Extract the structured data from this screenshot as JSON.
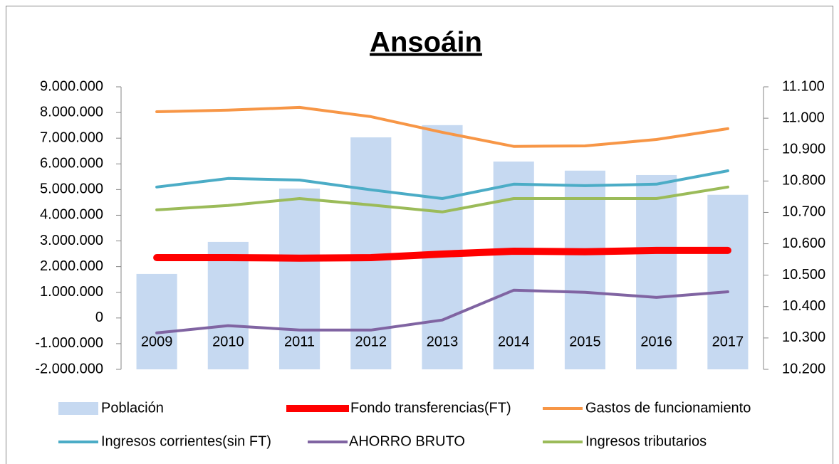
{
  "chart_data": {
    "type": "bar-line",
    "title": "Ansoáin",
    "categories": [
      "2009",
      "2010",
      "2011",
      "2012",
      "2013",
      "2014",
      "2015",
      "2016",
      "2017"
    ],
    "ylim": [
      -2000000,
      9000000
    ],
    "yticks": [
      {
        "value": -2000000,
        "label": "-2.000.000"
      },
      {
        "value": -1000000,
        "label": "-1.000.000"
      },
      0,
      {
        "value": 1000000,
        "label": "1.000.000"
      },
      {
        "value": 2000000,
        "label": "2.000.000"
      },
      {
        "value": 3000000,
        "label": "3.000.000"
      },
      {
        "value": 4000000,
        "label": "4.000.000"
      },
      {
        "value": 5000000,
        "label": "5.000.000"
      },
      {
        "value": 6000000,
        "label": "6.000.000"
      },
      {
        "value": 7000000,
        "label": "7.000.000"
      },
      {
        "value": 8000000,
        "label": "8.000.000"
      },
      {
        "value": 9000000,
        "label": "9.000.000"
      }
    ],
    "y2lim": [
      10200,
      11100
    ],
    "y2ticks": [
      {
        "value": 10200,
        "label": "10.200"
      },
      {
        "value": 10300,
        "label": "10.300"
      },
      {
        "value": 10400,
        "label": "10.400"
      },
      {
        "value": 10500,
        "label": "10.500"
      },
      {
        "value": 10600,
        "label": "10.600"
      },
      {
        "value": 10700,
        "label": "10.700"
      },
      {
        "value": 10800,
        "label": "10.800"
      },
      {
        "value": 10900,
        "label": "10.900"
      },
      {
        "value": 11000,
        "label": "11.000"
      },
      {
        "value": 11100,
        "label": "11.100"
      }
    ],
    "series": [
      {
        "name": "Población",
        "type": "bar",
        "axis": "y2",
        "color": "#c6d9f1",
        "values": [
          10504,
          10606,
          10776,
          10939,
          10978,
          10862,
          10833,
          10819,
          10756
        ]
      },
      {
        "name": "Fondo transferencias(FT)",
        "type": "line",
        "line_width": 10,
        "color": "#ff0000",
        "values": [
          2350000,
          2350000,
          2330000,
          2350000,
          2490000,
          2600000,
          2580000,
          2630000,
          2630000
        ]
      },
      {
        "name": "Gastos de funcionamiento",
        "type": "line",
        "line_width": 4,
        "color": "#f79646",
        "values": [
          8030000,
          8090000,
          8200000,
          7840000,
          7230000,
          6680000,
          6700000,
          6950000,
          7370000
        ]
      },
      {
        "name": "Ingresos corrientes(sin FT)",
        "type": "line",
        "line_width": 4,
        "color": "#4bacc6",
        "values": [
          5100000,
          5430000,
          5370000,
          4990000,
          4650000,
          5210000,
          5150000,
          5210000,
          5730000
        ]
      },
      {
        "name": "AHORRO BRUTO",
        "type": "line",
        "line_width": 4,
        "color": "#8064a2",
        "values": [
          -580000,
          -300000,
          -470000,
          -470000,
          -80000,
          1080000,
          1000000,
          800000,
          1020000
        ]
      },
      {
        "name": "Ingresos tributarios",
        "type": "line",
        "line_width": 4,
        "color": "#9bbb59",
        "values": [
          4210000,
          4380000,
          4650000,
          4400000,
          4130000,
          4650000,
          4650000,
          4650000,
          5100000
        ]
      }
    ]
  }
}
